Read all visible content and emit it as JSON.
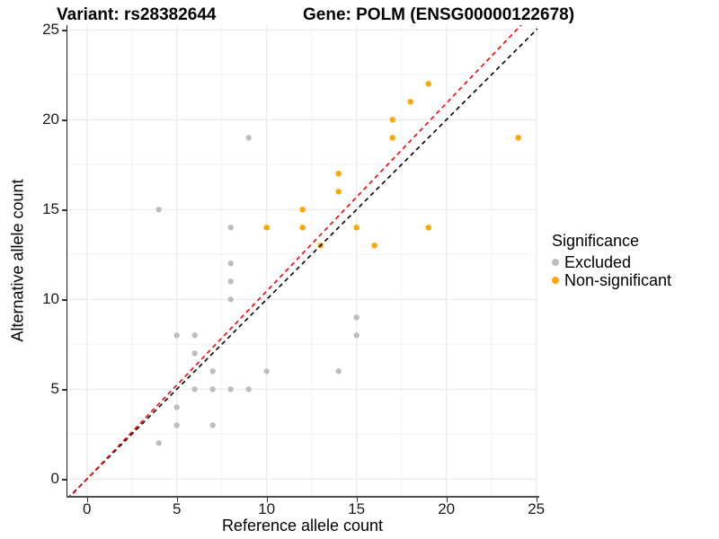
{
  "title": {
    "left": "Variant: rs28382644",
    "right": "Gene: POLM (ENSG00000122678)"
  },
  "axes": {
    "x": {
      "label": "Reference allele count",
      "ticks": [
        0,
        5,
        10,
        15,
        20,
        25
      ]
    },
    "y": {
      "label": "Alternative allele count",
      "ticks": [
        0,
        5,
        10,
        15,
        20,
        25
      ]
    }
  },
  "legend": {
    "title": "Significance",
    "items": [
      {
        "label": "Excluded",
        "color": "#BEBEBE"
      },
      {
        "label": "Non-significant",
        "color": "#FFA500"
      }
    ]
  },
  "chart_data": {
    "type": "scatter",
    "title": "Variant: rs28382644 | Gene: POLM (ENSG00000122678)",
    "xlabel": "Reference allele count",
    "ylabel": "Alternative allele count",
    "xlim": [
      -1.085,
      25.065
    ],
    "ylim": [
      -0.935,
      25.265
    ],
    "grid": {
      "major": [
        0,
        5,
        10,
        15,
        20,
        25
      ],
      "minor": [
        2.5,
        7.5,
        12.5,
        17.5,
        22.5
      ]
    },
    "colors": {
      "major_grid": "#e7e7e7",
      "minor_grid": "#f3f3f3",
      "identity_line": "#000000",
      "fit_line": "#ff0000"
    },
    "series": [
      {
        "name": "Excluded",
        "color": "#BEBEBE",
        "points": [
          [
            4,
            2
          ],
          [
            4,
            15
          ],
          [
            5,
            3
          ],
          [
            5,
            4
          ],
          [
            5,
            8
          ],
          [
            6,
            5
          ],
          [
            6,
            7
          ],
          [
            6,
            8
          ],
          [
            7,
            3
          ],
          [
            7,
            5
          ],
          [
            7,
            6
          ],
          [
            8,
            5
          ],
          [
            8,
            10
          ],
          [
            8,
            11
          ],
          [
            8,
            12
          ],
          [
            8,
            14
          ],
          [
            9,
            5
          ],
          [
            9,
            19
          ],
          [
            10,
            6
          ],
          [
            14,
            6
          ],
          [
            15,
            8
          ],
          [
            15,
            9
          ]
        ]
      },
      {
        "name": "Non-significant",
        "color": "#FFA500",
        "points": [
          [
            10,
            14
          ],
          [
            12,
            14
          ],
          [
            12,
            15
          ],
          [
            13,
            13
          ],
          [
            14,
            16
          ],
          [
            14,
            17
          ],
          [
            15,
            14
          ],
          [
            16,
            13
          ],
          [
            17,
            19
          ],
          [
            17,
            20
          ],
          [
            18,
            21
          ],
          [
            19,
            14
          ],
          [
            19,
            22
          ],
          [
            24,
            19
          ]
        ]
      }
    ],
    "lines": [
      {
        "name": "identity",
        "color": "#000000",
        "slope": 1.0,
        "intercept": 0,
        "dash": "5 4"
      },
      {
        "name": "fit",
        "color": "#ff0000",
        "slope": 1.046,
        "intercept": 0,
        "dash": "5 4"
      }
    ],
    "point_radius": 3.2
  }
}
